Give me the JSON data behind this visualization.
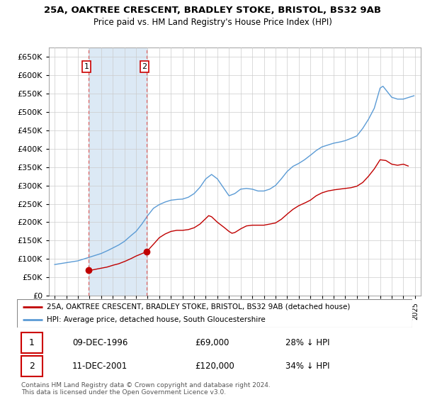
{
  "title": "25A, OAKTREE CRESCENT, BRADLEY STOKE, BRISTOL, BS32 9AB",
  "subtitle": "Price paid vs. HM Land Registry's House Price Index (HPI)",
  "legend_line1": "25A, OAKTREE CRESCENT, BRADLEY STOKE, BRISTOL, BS32 9AB (detached house)",
  "legend_line2": "HPI: Average price, detached house, South Gloucestershire",
  "transaction1_date": "09-DEC-1996",
  "transaction1_price": 69000,
  "transaction1_pct": "28% ↓ HPI",
  "transaction2_date": "11-DEC-2001",
  "transaction2_price": 120000,
  "transaction2_pct": "34% ↓ HPI",
  "footer": "Contains HM Land Registry data © Crown copyright and database right 2024.\nThis data is licensed under the Open Government Licence v3.0.",
  "hpi_color": "#5b9bd5",
  "price_color": "#c00000",
  "vline_color": "#e06060",
  "span_color": "#dce9f5",
  "ylim_max": 675000,
  "ylim_min": 0,
  "xmin": 1993.5,
  "xmax": 2025.5,
  "hpi_anchors_x": [
    1994.0,
    1995.0,
    1996.0,
    1997.0,
    1997.5,
    1998.0,
    1998.5,
    1999.0,
    1999.5,
    2000.0,
    2000.5,
    2001.0,
    2001.5,
    2002.0,
    2002.5,
    2003.0,
    2003.5,
    2004.0,
    2004.5,
    2005.0,
    2005.5,
    2006.0,
    2006.5,
    2007.0,
    2007.5,
    2008.0,
    2008.5,
    2009.0,
    2009.5,
    2010.0,
    2010.5,
    2011.0,
    2011.5,
    2012.0,
    2012.5,
    2013.0,
    2013.5,
    2014.0,
    2014.5,
    2015.0,
    2015.5,
    2016.0,
    2016.5,
    2017.0,
    2017.5,
    2018.0,
    2018.5,
    2019.0,
    2019.5,
    2020.0,
    2020.5,
    2021.0,
    2021.5,
    2022.0,
    2022.25,
    2022.5,
    2022.75,
    2023.0,
    2023.5,
    2024.0,
    2024.5,
    2025.0
  ],
  "hpi_anchors_y": [
    85000,
    90000,
    95000,
    105000,
    110000,
    115000,
    122000,
    130000,
    138000,
    148000,
    162000,
    175000,
    195000,
    218000,
    238000,
    248000,
    255000,
    260000,
    262000,
    263000,
    268000,
    278000,
    295000,
    318000,
    330000,
    318000,
    295000,
    272000,
    278000,
    290000,
    292000,
    290000,
    285000,
    285000,
    290000,
    300000,
    318000,
    338000,
    352000,
    360000,
    370000,
    382000,
    395000,
    405000,
    410000,
    415000,
    418000,
    422000,
    428000,
    435000,
    455000,
    480000,
    510000,
    565000,
    570000,
    560000,
    550000,
    540000,
    535000,
    535000,
    540000,
    545000
  ],
  "price_anchors_x": [
    1996.92,
    1997.2,
    1997.5,
    1998.0,
    1998.5,
    1999.0,
    1999.5,
    2000.0,
    2000.5,
    2001.0,
    2001.92,
    2002.5,
    2003.0,
    2003.5,
    2004.0,
    2004.5,
    2005.0,
    2005.5,
    2006.0,
    2006.5,
    2007.0,
    2007.25,
    2007.5,
    2008.0,
    2008.5,
    2009.0,
    2009.25,
    2009.5,
    2010.0,
    2010.5,
    2011.0,
    2011.5,
    2012.0,
    2012.5,
    2013.0,
    2013.5,
    2014.0,
    2014.5,
    2015.0,
    2015.5,
    2016.0,
    2016.5,
    2017.0,
    2017.5,
    2018.0,
    2018.5,
    2019.0,
    2019.5,
    2020.0,
    2020.5,
    2021.0,
    2021.5,
    2022.0,
    2022.5,
    2023.0,
    2023.5,
    2024.0,
    2024.5
  ],
  "price_anchors_y": [
    69000,
    70000,
    72000,
    75000,
    78000,
    83000,
    87000,
    93000,
    100000,
    108000,
    120000,
    140000,
    158000,
    168000,
    175000,
    178000,
    178000,
    180000,
    185000,
    195000,
    210000,
    218000,
    215000,
    200000,
    188000,
    175000,
    170000,
    172000,
    182000,
    190000,
    192000,
    192000,
    192000,
    195000,
    198000,
    208000,
    222000,
    235000,
    245000,
    252000,
    260000,
    272000,
    280000,
    285000,
    288000,
    290000,
    292000,
    294000,
    298000,
    308000,
    325000,
    345000,
    370000,
    368000,
    358000,
    355000,
    358000,
    352000
  ]
}
